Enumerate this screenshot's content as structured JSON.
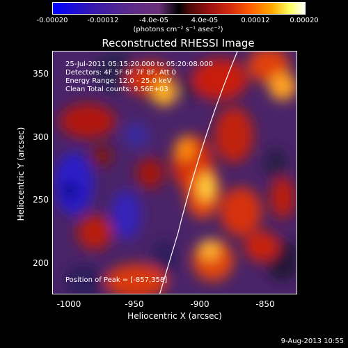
{
  "colorbar": {
    "ticks": [
      "-0.00020",
      "-0.00012",
      "-4.0e-05",
      "4.0e-05",
      "0.00012",
      "0.00020"
    ],
    "units": "(photons cm⁻² s⁻¹ asec⁻²)"
  },
  "title": "Reconstructed RHESSI Image",
  "info": {
    "time_range": "25-Jul-2011 05:15:20.000 to 05:20:08.000",
    "detectors": "Detectors: 4F 5F 6F 7F 8F, Att 0",
    "energy": "Energy Range: 12.0 - 25.0 keV",
    "clean": "Clean     Total counts: 9.56E+03",
    "peak": "Position of Peak = [-857,358]"
  },
  "chart_data": {
    "type": "heatmap",
    "title": "Reconstructed RHESSI Image",
    "xlabel": "Heliocentric X (arcsec)",
    "ylabel": "Heliocentric Y (arcsec)",
    "xlim": [
      -1013,
      -826
    ],
    "ylim": [
      175,
      370
    ],
    "xticks": [
      "-1000",
      "-950",
      "-900",
      "-850"
    ],
    "yticks": [
      "200",
      "250",
      "300",
      "350"
    ],
    "xtick_values": [
      -1000,
      -950,
      -900,
      -850
    ],
    "ytick_values": [
      200,
      250,
      300,
      350
    ],
    "peak_position": [
      -857,
      358
    ]
  },
  "footer": {
    "date": "9-Aug-2013 10:55"
  }
}
